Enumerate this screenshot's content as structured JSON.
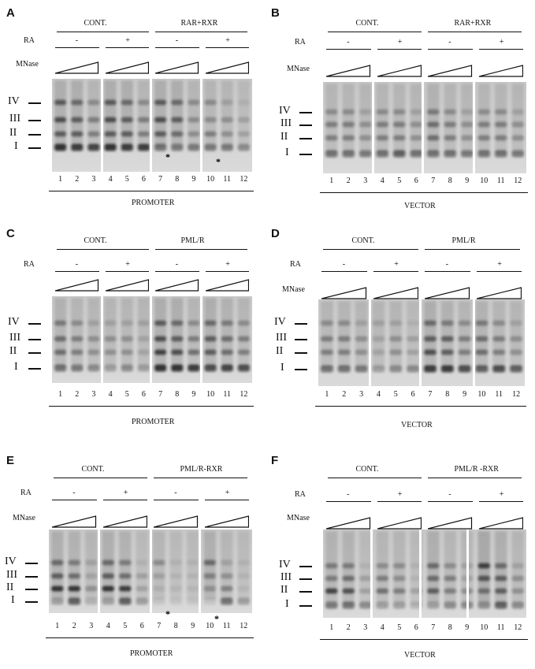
{
  "panels": [
    {
      "letter": "A",
      "group_left": "CONT.",
      "group_right": "RAR+RXR",
      "ra_label": "RA",
      "ra_values": [
        "-",
        "+",
        "-",
        "+"
      ],
      "mnase_label": "MNase",
      "lanes": [
        "1",
        "2",
        "3",
        "4",
        "5",
        "6",
        "7",
        "8",
        "9",
        "10",
        "11",
        "12"
      ],
      "markers": [
        "IV",
        "III",
        "II",
        "I"
      ],
      "footer": "PROMOTER"
    },
    {
      "letter": "B",
      "group_left": "CONT.",
      "group_right": "RAR+RXR",
      "ra_label": "RA",
      "ra_values": [
        "-",
        "+",
        "-",
        "+"
      ],
      "mnase_label": "MNase",
      "lanes": [
        "1",
        "2",
        "3",
        "4",
        "5",
        "6",
        "7",
        "8",
        "9",
        "10",
        "11",
        "12"
      ],
      "markers": [
        "IV",
        "III",
        "II",
        "I"
      ],
      "footer": "VECTOR"
    },
    {
      "letter": "C",
      "group_left": "CONT.",
      "group_right": "PML/R",
      "ra_label": "RA",
      "ra_values": [
        "-",
        "+",
        "-",
        "+"
      ],
      "mnase_label": "",
      "lanes": [
        "1",
        "2",
        "3",
        "4",
        "5",
        "6",
        "7",
        "8",
        "9",
        "10",
        "11",
        "12"
      ],
      "markers": [
        "IV",
        "III",
        "II",
        "I"
      ],
      "footer": "PROMOTER"
    },
    {
      "letter": "D",
      "group_left": "CONT.",
      "group_right": "PML/R",
      "ra_label": "RA",
      "ra_values": [
        "-",
        "+",
        "-",
        "+"
      ],
      "mnase_label": "MNase",
      "lanes": [
        "1",
        "2",
        "3",
        "4",
        "5",
        "6",
        "7",
        "8",
        "9",
        "10",
        "11",
        "12"
      ],
      "markers": [
        "IV",
        "III",
        "II",
        "I"
      ],
      "footer": "VECTOR"
    },
    {
      "letter": "E",
      "group_left": "CONT.",
      "group_right": "PML/R-RXR",
      "ra_label": "RA",
      "ra_values": [
        "-",
        "+",
        "-",
        "+"
      ],
      "mnase_label": "MNase",
      "lanes": [
        "1",
        "2",
        "3",
        "4",
        "5",
        "6",
        "7",
        "8",
        "9",
        "10",
        "11",
        "12"
      ],
      "markers": [
        "IV",
        "III",
        "II",
        "I"
      ],
      "footer": "PROMOTER"
    },
    {
      "letter": "F",
      "group_left": "CONT.",
      "group_right": "PML/R  -RXR",
      "ra_label": "RA",
      "ra_values": [
        "-",
        "+",
        "-",
        "+"
      ],
      "mnase_label": "MNase",
      "lanes": [
        "1",
        "2",
        "3",
        "4",
        "5",
        "6",
        "7",
        "8",
        "9",
        "10",
        "11",
        "12"
      ],
      "markers": [
        "IV",
        "III",
        "II",
        "I"
      ],
      "footer": "VECTOR"
    }
  ],
  "asterisk": "*"
}
